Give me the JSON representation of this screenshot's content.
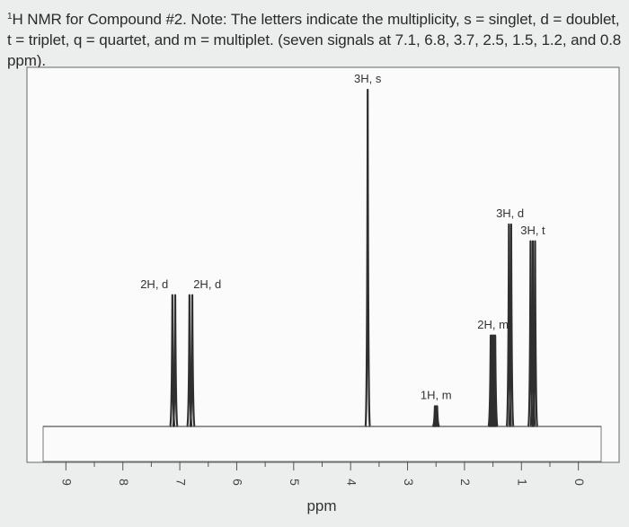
{
  "caption": {
    "superscript": "1",
    "text": "H NMR for Compound #2. Note: The letters indicate the multiplicity, s = singlet, d = doublet, t = triplet, q = quartet, and m = multiplet. (seven signals at 7.1, 6.8, 3.7, 2.5, 1.5, 1.2, and 0.8 ppm)."
  },
  "chart_data": {
    "type": "line",
    "xlabel": "ppm",
    "xlim": [
      9.4,
      -0.4
    ],
    "x_reversed": true,
    "ticks": [
      9,
      8,
      7,
      6,
      5,
      4,
      3,
      2,
      1,
      0
    ],
    "tick_labels": [
      "9",
      "8",
      "7",
      "6",
      "5",
      "4",
      "3",
      "2",
      "1",
      "0"
    ],
    "tick_label_rotation": 90,
    "ylim": [
      0,
      1
    ],
    "grid": false,
    "peaks": [
      {
        "label": "2H, d",
        "ppm": 7.1,
        "lines": [
          7.13,
          7.08
        ],
        "height": 0.39,
        "spacing": 0.05
      },
      {
        "label": "2H, d",
        "ppm": 6.8,
        "lines": [
          6.83,
          6.78
        ],
        "height": 0.39,
        "spacing": 0.05
      },
      {
        "label": "3H, s",
        "ppm": 3.7,
        "lines": [
          3.7
        ],
        "height": 1.0,
        "spacing": 0
      },
      {
        "label": "1H, m",
        "ppm": 2.5,
        "lines": [
          2.52,
          2.5,
          2.48
        ],
        "height": 0.06,
        "spacing": 0.02
      },
      {
        "label": "2H, m",
        "ppm": 1.5,
        "lines": [
          1.54,
          1.52,
          1.5,
          1.48,
          1.46
        ],
        "height": 0.27,
        "spacing": 0.02
      },
      {
        "label": "3H, d",
        "ppm": 1.2,
        "lines": [
          1.22,
          1.18
        ],
        "height": 0.6,
        "spacing": 0.04
      },
      {
        "label": "3H, t",
        "ppm": 0.8,
        "lines": [
          0.84,
          0.8,
          0.76
        ],
        "height": 0.55,
        "spacing": 0.04
      }
    ],
    "colors": {
      "trace": "#2f2f2f",
      "frame": "#666666",
      "plot_bg": "#fbfbfb",
      "page_bg": "#eceded"
    }
  }
}
